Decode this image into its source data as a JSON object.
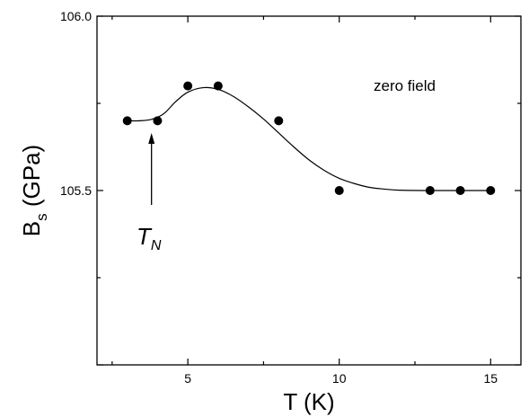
{
  "chart_data": {
    "type": "scatter",
    "title": "",
    "xlabel": "T (K)",
    "ylabel": {
      "main": "B",
      "sub": "s",
      "rest": " (GPa)"
    },
    "xlim": [
      2,
      16
    ],
    "ylim": [
      105.0,
      106.0
    ],
    "x_ticks": [
      5,
      10,
      15
    ],
    "y_tick_labels": [
      {
        "value": 106.0,
        "label": "106.0"
      },
      {
        "value": 105.5,
        "label": "105.5"
      }
    ],
    "grid": false,
    "series": [
      {
        "points": [
          {
            "x": 3,
            "y": 105.7
          },
          {
            "x": 4,
            "y": 105.7
          },
          {
            "x": 5,
            "y": 105.8
          },
          {
            "x": 6,
            "y": 105.8
          },
          {
            "x": 8,
            "y": 105.7
          },
          {
            "x": 10,
            "y": 105.5
          },
          {
            "x": 13,
            "y": 105.5
          },
          {
            "x": 14,
            "y": 105.5
          },
          {
            "x": 15,
            "y": 105.5
          }
        ]
      }
    ],
    "fit_curve": [
      [
        3.0,
        105.7
      ],
      [
        3.4,
        105.7
      ],
      [
        3.8,
        105.704
      ],
      [
        4.2,
        105.72
      ],
      [
        4.6,
        105.755
      ],
      [
        5.0,
        105.782
      ],
      [
        5.5,
        105.795
      ],
      [
        6.0,
        105.79
      ],
      [
        6.5,
        105.77
      ],
      [
        7.0,
        105.74
      ],
      [
        7.5,
        105.705
      ],
      [
        8.0,
        105.665
      ],
      [
        8.5,
        105.625
      ],
      [
        9.0,
        105.588
      ],
      [
        9.5,
        105.558
      ],
      [
        10.0,
        105.535
      ],
      [
        10.5,
        105.52
      ],
      [
        11.0,
        105.509
      ],
      [
        11.5,
        105.504
      ],
      [
        12.0,
        105.501
      ],
      [
        13.0,
        105.5
      ],
      [
        14.0,
        105.5
      ],
      [
        15.0,
        105.5
      ]
    ],
    "annotations": {
      "field_label": "zero field",
      "arrow_label": {
        "main": "T",
        "sub": "N"
      },
      "arrow_x": 3.8
    }
  }
}
